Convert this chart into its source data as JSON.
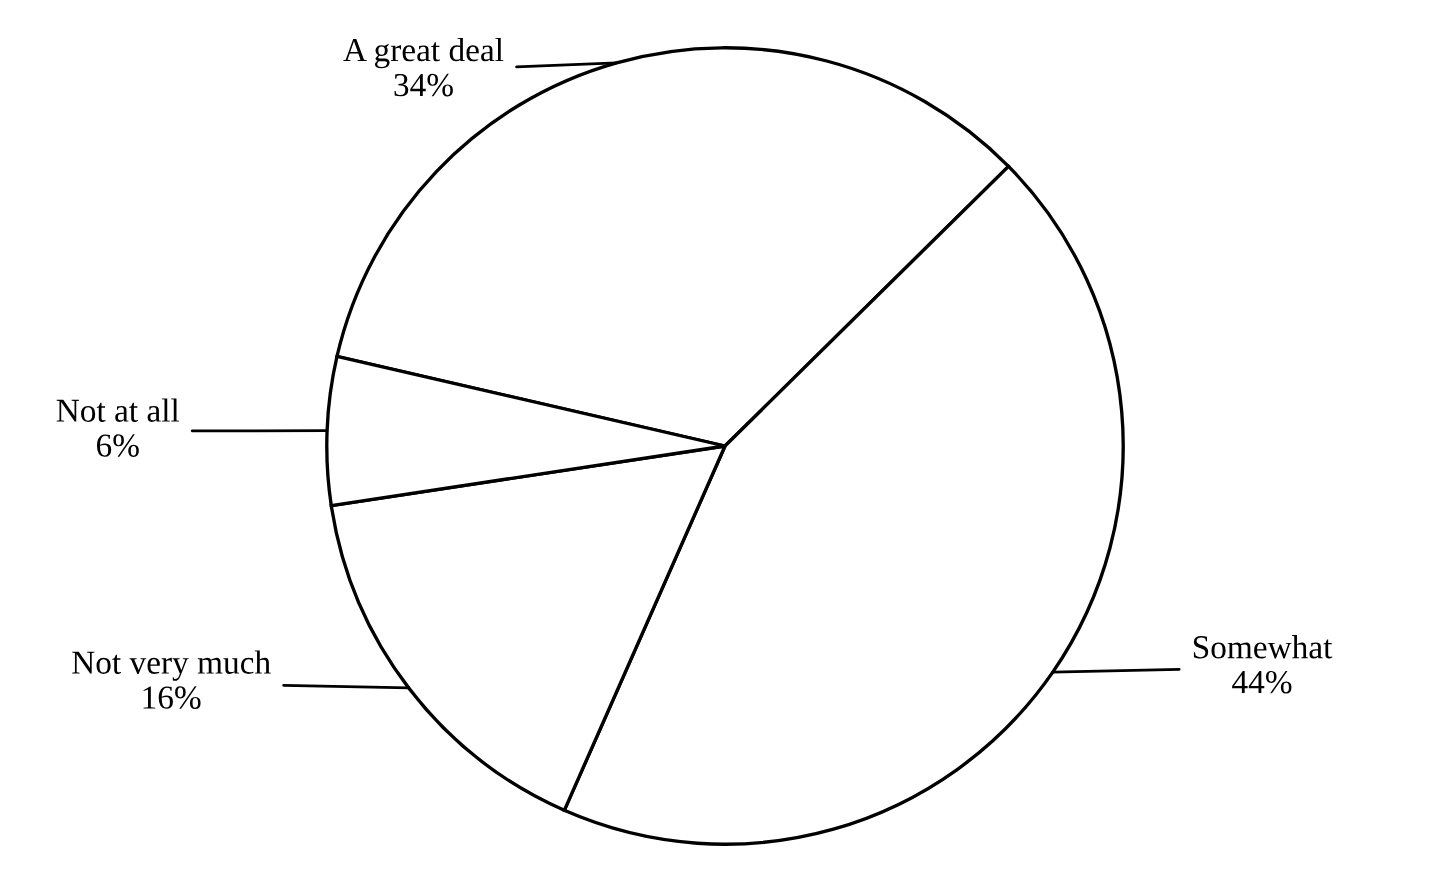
{
  "chart_data": {
    "type": "pie",
    "categories": [
      "A great deal",
      "Somewhat",
      "Not very much",
      "Not at all"
    ],
    "values": [
      34,
      44,
      16,
      6
    ],
    "value_labels": [
      "34%",
      "44%",
      "16%",
      "6%"
    ],
    "colors": [
      "#ffffff",
      "#ffffff",
      "#ffffff",
      "#ffffff"
    ],
    "legend": false
  }
}
